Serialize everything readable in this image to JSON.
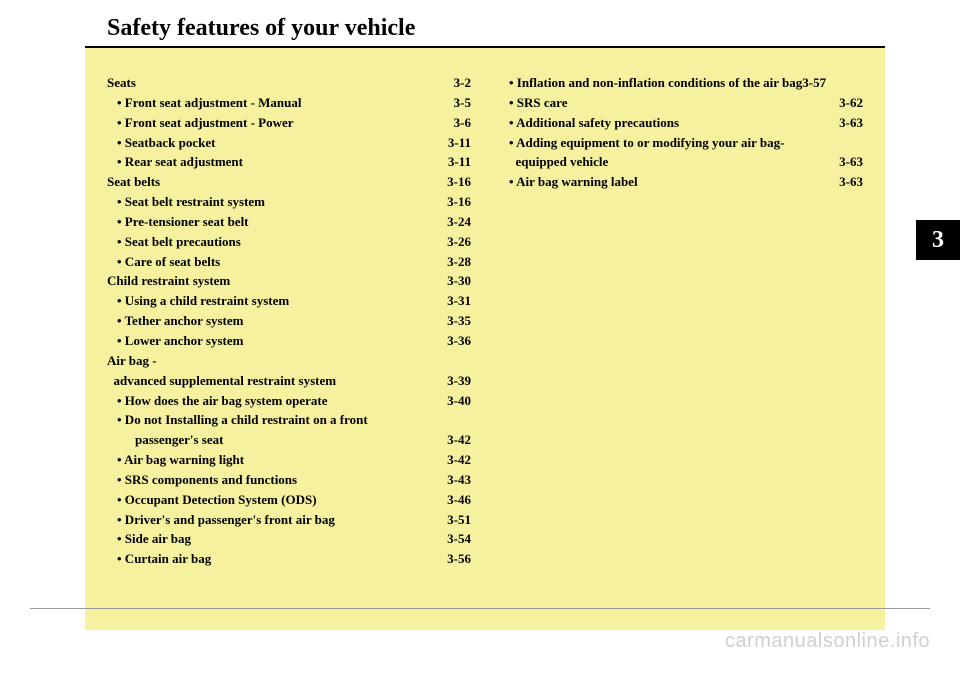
{
  "title": "Safety features of your vehicle",
  "chapter_tab": "3",
  "watermark": "carmanualsonline.info",
  "colors": {
    "content_bg": "#f5f19f",
    "tab_bg": "#000000",
    "tab_fg": "#ffffff",
    "rule": "#999999",
    "watermark": "#d0d0d0"
  },
  "left_col": [
    {
      "cls": "section",
      "label": "Seats",
      "page": "3-2"
    },
    {
      "cls": "sub",
      "label": "• Front seat adjustment - Manual",
      "page": "3-5"
    },
    {
      "cls": "sub",
      "label": "• Front seat adjustment - Power",
      "page": "3-6"
    },
    {
      "cls": "sub",
      "label": "• Seatback pocket",
      "page": "3-11"
    },
    {
      "cls": "sub",
      "label": "• Rear seat adjustment",
      "page": "3-11"
    },
    {
      "cls": "section",
      "label": "Seat belts",
      "page": "3-16"
    },
    {
      "cls": "sub",
      "label": "• Seat belt restraint system",
      "page": "3-16"
    },
    {
      "cls": "sub",
      "label": "• Pre-tensioner seat belt",
      "page": "3-24"
    },
    {
      "cls": "sub",
      "label": "• Seat belt precautions",
      "page": "3-26"
    },
    {
      "cls": "sub",
      "label": "• Care of seat belts",
      "page": "3-28"
    },
    {
      "cls": "section",
      "label": "Child restraint system",
      "page": "3-30"
    },
    {
      "cls": "sub",
      "label": "• Using a child restraint system",
      "page": "3-31"
    },
    {
      "cls": "sub",
      "label": "• Tether anchor system",
      "page": "3-35"
    },
    {
      "cls": "sub",
      "label": "• Lower anchor system",
      "page": "3-36"
    },
    {
      "cls": "section noleader",
      "label": "Air bag -",
      "page": ""
    },
    {
      "cls": "section",
      "label": "  advanced supplemental restraint system",
      "page": "3-39"
    },
    {
      "cls": "sub",
      "label": "• How does the air bag system operate",
      "page": "3-40"
    },
    {
      "cls": "sub noleader",
      "label": "• Do not Installing a child restraint on a front",
      "page": ""
    },
    {
      "cls": "sub2",
      "label": "passenger's seat",
      "page": "3-42"
    },
    {
      "cls": "sub",
      "label": "• Air bag warning light",
      "page": "3-42"
    },
    {
      "cls": "sub",
      "label": "• SRS components and functions",
      "page": "3-43"
    },
    {
      "cls": "sub",
      "label": "• Occupant Detection System (ODS)",
      "page": "3-46"
    },
    {
      "cls": "sub",
      "label": "• Driver's and passenger's front air bag",
      "page": "3-51"
    },
    {
      "cls": "sub",
      "label": "• Side air bag",
      "page": "3-54"
    },
    {
      "cls": "sub",
      "label": "• Curtain air bag",
      "page": "3-56"
    }
  ],
  "right_col": [
    {
      "cls": "sub",
      "label": "• Inflation and non-inflation conditions of the air bag",
      "page": "3-57",
      "tight": true
    },
    {
      "cls": "sub",
      "label": "• SRS care",
      "page": "3-62"
    },
    {
      "cls": "sub",
      "label": "• Additional safety precautions",
      "page": "3-63"
    },
    {
      "cls": "sub noleader",
      "label": "• Adding equipment to or modifying your air bag-",
      "page": ""
    },
    {
      "cls": "sub",
      "label": "  equipped vehicle",
      "page": "3-63"
    },
    {
      "cls": "sub",
      "label": "• Air bag warning label",
      "page": "3-63"
    }
  ]
}
